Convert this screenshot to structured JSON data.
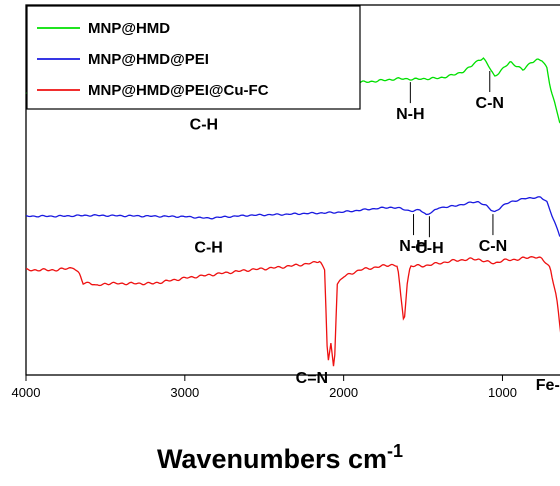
{
  "chart_data": {
    "type": "line",
    "title": "",
    "xlabel": "Wavenumbers cm",
    "xlabel_superscript": "-1",
    "ylabel": "",
    "xlim": [
      4000,
      600
    ],
    "x_reversed": true,
    "x_ticks": [
      4000,
      3000,
      2000,
      1000
    ],
    "x_tick_labels": [
      "4000",
      "3000",
      "2000",
      "1000"
    ],
    "y_ticks_shown": false,
    "grid": false,
    "legend_position": "top-left",
    "series": [
      {
        "name": "MNP@HMD",
        "color": "#00e000",
        "x": [
          4000,
          3800,
          3600,
          3400,
          3200,
          3000,
          2920,
          2860,
          2800,
          2600,
          2400,
          2200,
          2000,
          1800,
          1700,
          1650,
          1600,
          1560,
          1500,
          1400,
          1300,
          1250,
          1200,
          1150,
          1120,
          1080,
          1050,
          1000,
          950,
          900,
          870,
          820,
          780,
          750,
          720,
          700,
          670,
          640,
          615,
          600
        ],
        "y": [
          0.54,
          0.54,
          0.545,
          0.54,
          0.535,
          0.53,
          0.525,
          0.52,
          0.525,
          0.55,
          0.57,
          0.59,
          0.62,
          0.64,
          0.655,
          0.66,
          0.66,
          0.655,
          0.66,
          0.665,
          0.695,
          0.72,
          0.76,
          0.82,
          0.83,
          0.75,
          0.68,
          0.74,
          0.8,
          0.76,
          0.73,
          0.8,
          0.82,
          0.81,
          0.75,
          0.6,
          0.45,
          0.3,
          0.25,
          0.28
        ]
      },
      {
        "name": "MNP@HMD@PEI",
        "color": "#1a1ae0",
        "x": [
          4000,
          3800,
          3600,
          3400,
          3200,
          3000,
          2920,
          2850,
          2800,
          2600,
          2400,
          2200,
          2100,
          2000,
          1900,
          1800,
          1700,
          1640,
          1600,
          1560,
          1520,
          1480,
          1440,
          1400,
          1300,
          1200,
          1150,
          1100,
          1070,
          1050,
          1000,
          950,
          900,
          850,
          800,
          760,
          720,
          700,
          670,
          640,
          615,
          600
        ],
        "y": [
          0.28,
          0.28,
          0.29,
          0.285,
          0.28,
          0.275,
          0.265,
          0.255,
          0.265,
          0.29,
          0.3,
          0.315,
          0.32,
          0.33,
          0.35,
          0.37,
          0.385,
          0.37,
          0.35,
          0.34,
          0.355,
          0.3,
          0.33,
          0.38,
          0.4,
          0.44,
          0.45,
          0.4,
          0.35,
          0.33,
          0.4,
          0.45,
          0.47,
          0.49,
          0.5,
          0.5,
          0.45,
          0.35,
          0.2,
          0.05,
          0.02,
          0.05
        ]
      },
      {
        "name": "MNP@HMD@PEI@Cu-FC",
        "color": "#ee1111",
        "x": [
          4000,
          3800,
          3700,
          3660,
          3640,
          3600,
          3560,
          3500,
          3400,
          3200,
          3000,
          2800,
          2600,
          2400,
          2200,
          2150,
          2120,
          2100,
          2080,
          2060,
          2040,
          2000,
          1900,
          1800,
          1700,
          1660,
          1640,
          1620,
          1600,
          1580,
          1500,
          1400,
          1300,
          1200,
          1150,
          1100,
          1050,
          1000,
          900,
          800,
          750,
          700,
          660,
          630,
          615,
          600
        ],
        "y": [
          0.0,
          0.0,
          0.02,
          -0.04,
          -0.1,
          -0.09,
          -0.12,
          -0.1,
          -0.1,
          -0.1,
          -0.06,
          -0.03,
          0.0,
          0.02,
          0.05,
          0.07,
          0.0,
          -0.7,
          -0.55,
          -0.75,
          -0.1,
          -0.05,
          0.0,
          0.02,
          0.04,
          0.03,
          -0.2,
          -0.4,
          -0.1,
          0.03,
          0.03,
          0.05,
          0.07,
          0.08,
          0.08,
          0.06,
          0.05,
          0.07,
          0.08,
          0.1,
          0.08,
          0.02,
          -0.2,
          -0.5,
          -0.6,
          -0.55
        ]
      }
    ],
    "annotations": [
      {
        "text": "C-H",
        "x": 2880,
        "series": "MNP@HMD",
        "marker": false
      },
      {
        "text": "N-H",
        "x": 1580,
        "series": "MNP@HMD",
        "marker": true
      },
      {
        "text": "C-N",
        "x": 1080,
        "series": "MNP@HMD",
        "marker": true
      },
      {
        "text": "C-H",
        "x": 2850,
        "series": "MNP@HMD@PEI",
        "marker": false
      },
      {
        "text": "N-H",
        "x": 1560,
        "series": "MNP@HMD@PEI",
        "marker": true
      },
      {
        "text": "C-H",
        "x": 1460,
        "series": "MNP@HMD@PEI",
        "marker": true
      },
      {
        "text": "C-N",
        "x": 1060,
        "series": "MNP@HMD@PEI",
        "marker": true
      },
      {
        "text": "C=N",
        "x": 2200,
        "series": "MNP@HMD@PEI@Cu-FC",
        "marker": false
      },
      {
        "text": "Fe-O",
        "x": 600,
        "series": "MNP@HMD@PEI@Cu-FC",
        "marker": false
      }
    ]
  }
}
